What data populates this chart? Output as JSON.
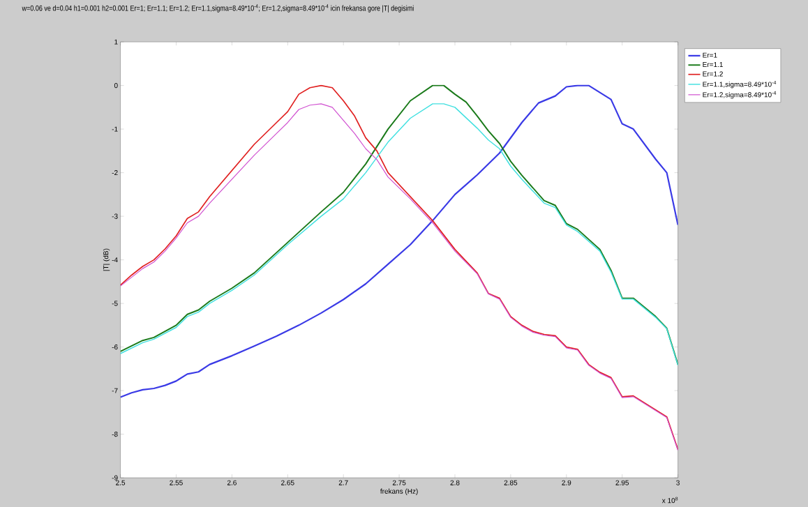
{
  "chart_data": {
    "type": "line",
    "title": "w=0.06 ve d=0.04 h1=0.001 h2=0.001 Er=1; Er=1.1; Er=1.2; Er=1.1,sigma=8.49*10$^{-4}$; Er=1.2,sigma=8.49*10$^{-4}$ icin frekansa gore |T| degisimi",
    "xlabel": "frekans  (Hz)",
    "ylabel": "|T|    (dB)",
    "annotations": [
      "x 10$^{8}$"
    ],
    "xlim": [
      2.5,
      3
    ],
    "xticks": [
      2.5,
      2.55,
      2.6,
      2.65,
      2.7,
      2.75,
      2.8,
      2.85,
      2.9,
      2.95,
      3
    ],
    "ylim": [
      -9,
      1
    ],
    "yticks": [
      -9,
      -8,
      -7,
      -6,
      -5,
      -4,
      -3,
      -2,
      -1,
      0,
      1
    ],
    "grid": false,
    "legend": "top right",
    "marker": "none",
    "line_style": "solid",
    "series": [
      {
        "name": "Er=1",
        "color": "#3a3ae6",
        "x": [
          2.5,
          2.51,
          2.52,
          2.53,
          2.54,
          2.55,
          2.56,
          2.57,
          2.58,
          2.6,
          2.62,
          2.64,
          2.66,
          2.68,
          2.7,
          2.72,
          2.74,
          2.76,
          2.78,
          2.8,
          2.82,
          2.84,
          2.86,
          2.875,
          2.89,
          2.9,
          2.91,
          2.92,
          2.94,
          2.95,
          2.96,
          2.98,
          2.99,
          3.0
        ],
        "values": [
          -7.15,
          -7.05,
          -6.98,
          -6.95,
          -6.88,
          -6.78,
          -6.62,
          -6.57,
          -6.4,
          -6.2,
          -5.98,
          -5.75,
          -5.5,
          -5.22,
          -4.91,
          -4.55,
          -4.1,
          -3.65,
          -3.1,
          -2.5,
          -2.05,
          -1.55,
          -0.85,
          -0.4,
          -0.24,
          -0.03,
          0,
          0,
          -0.32,
          -0.88,
          -1.0,
          -1.69,
          -2.0,
          -3.2
        ]
      },
      {
        "name": "Er=1.1",
        "color": "#1a7a1a",
        "x": [
          2.5,
          2.52,
          2.53,
          2.55,
          2.56,
          2.57,
          2.58,
          2.6,
          2.62,
          2.65,
          2.68,
          2.7,
          2.72,
          2.74,
          2.76,
          2.78,
          2.79,
          2.8,
          2.81,
          2.82,
          2.83,
          2.84,
          2.85,
          2.86,
          2.88,
          2.89,
          2.9,
          2.91,
          2.93,
          2.94,
          2.95,
          2.96,
          2.98,
          2.99,
          3.0
        ],
        "values": [
          -6.1,
          -5.85,
          -5.78,
          -5.5,
          -5.25,
          -5.15,
          -4.95,
          -4.65,
          -4.3,
          -3.6,
          -2.9,
          -2.45,
          -1.8,
          -1.0,
          -0.35,
          0,
          0,
          -0.2,
          -0.38,
          -0.7,
          -1.04,
          -1.33,
          -1.74,
          -2.06,
          -2.64,
          -2.75,
          -3.17,
          -3.3,
          -3.76,
          -4.24,
          -4.88,
          -4.88,
          -5.3,
          -5.57,
          -6.4
        ]
      },
      {
        "name": "Er=1.2",
        "color": "#e02020",
        "x": [
          2.5,
          2.51,
          2.52,
          2.53,
          2.54,
          2.55,
          2.56,
          2.57,
          2.58,
          2.6,
          2.62,
          2.64,
          2.65,
          2.66,
          2.67,
          2.68,
          2.69,
          2.7,
          2.71,
          2.72,
          2.73,
          2.74,
          2.76,
          2.78,
          2.8,
          2.82,
          2.83,
          2.84,
          2.85,
          2.86,
          2.87,
          2.88,
          2.89,
          2.9,
          2.91,
          2.92,
          2.93,
          2.94,
          2.95,
          2.96,
          2.98,
          2.99,
          3.0
        ],
        "values": [
          -4.58,
          -4.35,
          -4.15,
          -4.0,
          -3.75,
          -3.45,
          -3.05,
          -2.9,
          -2.55,
          -1.95,
          -1.35,
          -0.85,
          -0.6,
          -0.2,
          -0.05,
          0,
          -0.05,
          -0.35,
          -0.7,
          -1.2,
          -1.5,
          -2.0,
          -2.55,
          -3.1,
          -3.76,
          -4.3,
          -4.77,
          -4.88,
          -5.3,
          -5.5,
          -5.64,
          -5.71,
          -5.74,
          -6.0,
          -6.05,
          -6.4,
          -6.58,
          -6.7,
          -7.14,
          -7.12,
          -7.44,
          -7.6,
          -8.35
        ]
      },
      {
        "name": "Er=1.1,sigma=8.49*10$^{-4}$",
        "color": "#40e0e0",
        "x": [
          2.5,
          2.52,
          2.53,
          2.55,
          2.56,
          2.57,
          2.58,
          2.6,
          2.62,
          2.65,
          2.68,
          2.7,
          2.72,
          2.74,
          2.76,
          2.78,
          2.79,
          2.8,
          2.82,
          2.83,
          2.84,
          2.85,
          2.86,
          2.88,
          2.89,
          2.9,
          2.91,
          2.93,
          2.94,
          2.95,
          2.96,
          2.98,
          2.99,
          3.0
        ],
        "values": [
          -6.15,
          -5.9,
          -5.82,
          -5.55,
          -5.3,
          -5.2,
          -5.0,
          -4.7,
          -4.35,
          -3.65,
          -3.0,
          -2.6,
          -2.0,
          -1.3,
          -0.75,
          -0.42,
          -0.42,
          -0.5,
          -0.98,
          -1.25,
          -1.45,
          -1.85,
          -2.15,
          -2.7,
          -2.8,
          -3.2,
          -3.35,
          -3.8,
          -4.28,
          -4.9,
          -4.9,
          -5.32,
          -5.58,
          -6.42
        ]
      },
      {
        "name": "Er=1.2,sigma=8.49*10$^{-4}$",
        "color": "#d050d0",
        "x": [
          2.5,
          2.51,
          2.52,
          2.53,
          2.54,
          2.55,
          2.56,
          2.57,
          2.58,
          2.6,
          2.62,
          2.64,
          2.65,
          2.66,
          2.67,
          2.68,
          2.69,
          2.7,
          2.71,
          2.72,
          2.73,
          2.74,
          2.76,
          2.78,
          2.8,
          2.82,
          2.83,
          2.84,
          2.85,
          2.86,
          2.87,
          2.88,
          2.89,
          2.9,
          2.91,
          2.92,
          2.93,
          2.94,
          2.95,
          2.96,
          2.98,
          2.99,
          3.0
        ],
        "values": [
          -4.6,
          -4.4,
          -4.2,
          -4.05,
          -3.8,
          -3.5,
          -3.15,
          -3.0,
          -2.7,
          -2.15,
          -1.6,
          -1.1,
          -0.85,
          -0.55,
          -0.45,
          -0.42,
          -0.5,
          -0.8,
          -1.1,
          -1.45,
          -1.7,
          -2.1,
          -2.6,
          -3.15,
          -3.8,
          -4.32,
          -4.78,
          -4.9,
          -5.32,
          -5.52,
          -5.66,
          -5.73,
          -5.76,
          -6.02,
          -6.07,
          -6.42,
          -6.6,
          -6.72,
          -7.16,
          -7.14,
          -7.46,
          -7.62,
          -8.37
        ]
      }
    ]
  }
}
